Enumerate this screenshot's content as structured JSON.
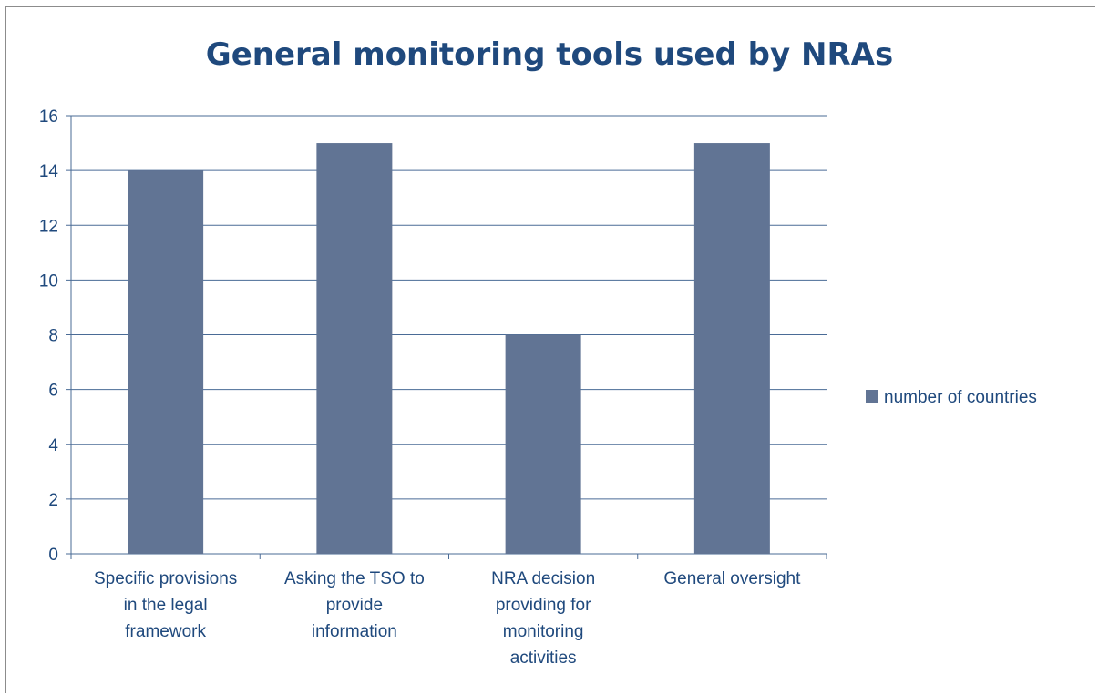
{
  "chart_data": {
    "type": "bar",
    "title": "General monitoring tools used by NRAs",
    "categories": [
      "Specific provisions in the legal framework",
      "Asking the TSO to provide information",
      "NRA decision providing for monitoring activities",
      "General oversight"
    ],
    "series": [
      {
        "name": "number of countries",
        "values": [
          14,
          15,
          8,
          15
        ],
        "color": "#617494"
      }
    ],
    "ylim": [
      0,
      16
    ],
    "yticks": [
      0,
      2,
      4,
      6,
      8,
      10,
      12,
      14,
      16
    ],
    "grid": true,
    "legend": "right",
    "xlabel": "",
    "ylabel": ""
  }
}
